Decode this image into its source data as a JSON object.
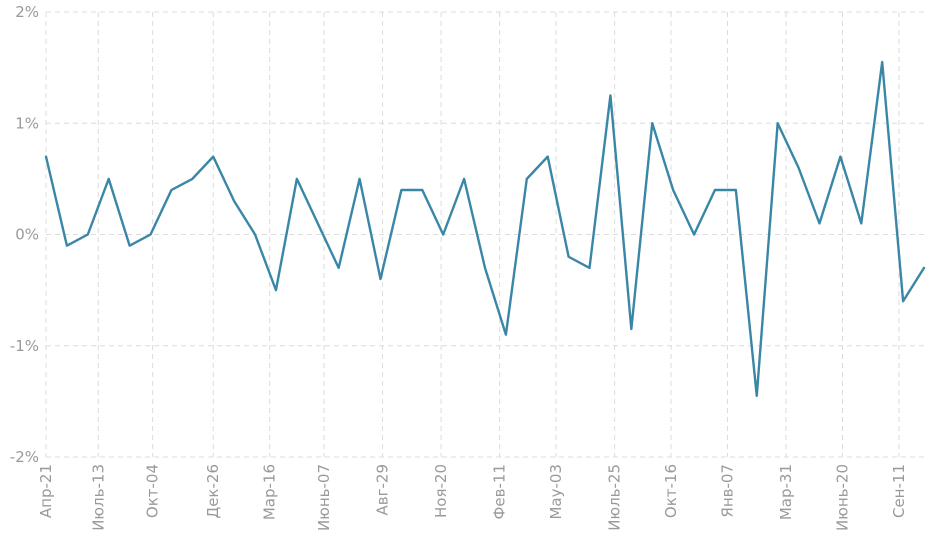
{
  "chart_data": {
    "type": "line",
    "title": "",
    "xlabel": "",
    "ylabel": "",
    "y_unit": "%",
    "ylim": [
      -2,
      2
    ],
    "y_ticks": [
      {
        "value": 2,
        "label": "2%"
      },
      {
        "value": 1,
        "label": "1%"
      },
      {
        "value": 0,
        "label": "0%"
      },
      {
        "value": -1,
        "label": "-1%"
      },
      {
        "value": -2,
        "label": "-2%"
      }
    ],
    "grid": true,
    "legend": "none",
    "x_tick_labels": [
      {
        "index": 0,
        "label": "Апр-21"
      },
      {
        "index": 2.5,
        "label": "Июль-13"
      },
      {
        "index": 5.1,
        "label": "Окт-04"
      },
      {
        "index": 8,
        "label": "Дек-26"
      },
      {
        "index": 10.7,
        "label": "Мар-16"
      },
      {
        "index": 13.3,
        "label": "Июнь-07"
      },
      {
        "index": 16.1,
        "label": "Авг-29"
      },
      {
        "index": 18.9,
        "label": "Ноя-20"
      },
      {
        "index": 21.7,
        "label": "Фев-11"
      },
      {
        "index": 24.4,
        "label": "Мау-03"
      },
      {
        "index": 27.2,
        "label": "Июль-25"
      },
      {
        "index": 29.9,
        "label": "Окт-16"
      },
      {
        "index": 32.6,
        "label": "Янв-07"
      },
      {
        "index": 35.4,
        "label": "Мар-31"
      },
      {
        "index": 38.1,
        "label": "Июнь-20"
      },
      {
        "index": 40.8,
        "label": "Сен-11"
      }
    ],
    "series": [
      {
        "color": "#3a86a6",
        "values": [
          0.7,
          -0.1,
          0.0,
          0.5,
          -0.1,
          0.0,
          0.4,
          0.5,
          0.7,
          0.3,
          0.0,
          -0.5,
          0.5,
          0.1,
          -0.3,
          0.5,
          -0.4,
          0.4,
          0.4,
          0.0,
          0.5,
          -0.3,
          -0.9,
          0.5,
          0.7,
          -0.2,
          -0.3,
          1.25,
          -0.85,
          1.0,
          0.4,
          0.0,
          0.4,
          0.4,
          -1.45,
          1.0,
          0.6,
          0.1,
          0.7,
          0.1,
          1.55,
          -0.6,
          -0.3
        ]
      }
    ]
  }
}
